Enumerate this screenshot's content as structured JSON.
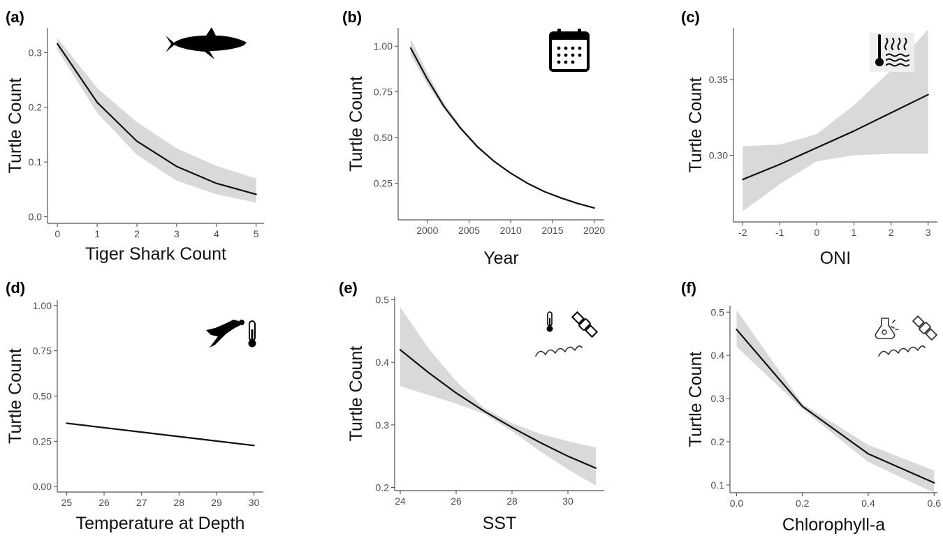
{
  "chart_data": [
    {
      "panel": "(a)",
      "type": "line",
      "xlabel": "Tiger Shark Count",
      "ylabel": "Turtle Count",
      "x_ticks": [
        "0",
        "1",
        "2",
        "3",
        "4",
        "5"
      ],
      "y_ticks": [
        "0.0",
        "0.1",
        "0.2",
        "0.3"
      ],
      "xlim": [
        -0.25,
        5.2
      ],
      "ylim": [
        -0.012,
        0.345
      ],
      "x_tick_values": [
        0,
        1,
        2,
        3,
        4,
        5
      ],
      "y_tick_values": [
        0,
        0.1,
        0.2,
        0.3
      ],
      "x": [
        0,
        1,
        2,
        3,
        4,
        5
      ],
      "y": [
        0.316,
        0.209,
        0.138,
        0.092,
        0.061,
        0.041
      ],
      "ci_lower": [
        0.305,
        0.19,
        0.113,
        0.066,
        0.041,
        0.026
      ],
      "ci_upper": [
        0.327,
        0.235,
        0.173,
        0.125,
        0.093,
        0.07
      ],
      "icon": "shark-icon",
      "grid": false
    },
    {
      "panel": "(b)",
      "type": "line",
      "xlabel": "Year",
      "ylabel": "Turtle Count",
      "x_ticks": [
        "2000",
        "2005",
        "2010",
        "2015",
        "2020"
      ],
      "y_ticks": [
        "0.25",
        "0.50",
        "0.75",
        "1.00"
      ],
      "xlim": [
        1996.5,
        2021.2
      ],
      "ylim": [
        0.05,
        1.1
      ],
      "x_tick_values": [
        2000,
        2005,
        2010,
        2015,
        2020
      ],
      "y_tick_values": [
        0.25,
        0.5,
        0.75,
        1.0
      ],
      "x": [
        1998,
        2000,
        2002,
        2004,
        2006,
        2008,
        2010,
        2012,
        2014,
        2016,
        2018,
        2020
      ],
      "y": [
        0.99,
        0.82,
        0.67,
        0.55,
        0.45,
        0.37,
        0.305,
        0.25,
        0.205,
        0.17,
        0.14,
        0.115
      ],
      "ci_lower": [
        0.95,
        0.79,
        0.655,
        0.54,
        0.443,
        0.366,
        0.302,
        0.248,
        0.203,
        0.168,
        0.138,
        0.112
      ],
      "ci_upper": [
        1.04,
        0.855,
        0.69,
        0.562,
        0.458,
        0.375,
        0.31,
        0.254,
        0.208,
        0.172,
        0.143,
        0.119
      ],
      "icon": "calendar-icon",
      "grid": false
    },
    {
      "panel": "(c)",
      "type": "line",
      "xlabel": "ONI",
      "ylabel": "Turtle Count",
      "x_ticks": [
        "-2",
        "-1",
        "0",
        "1",
        "2",
        "3"
      ],
      "y_ticks": [
        "0.30",
        "0.35"
      ],
      "xlim": [
        -2.25,
        3.25
      ],
      "ylim": [
        0.256,
        0.384
      ],
      "x_tick_values": [
        -2,
        -1,
        0,
        1,
        2,
        3
      ],
      "y_tick_values": [
        0.3,
        0.35
      ],
      "x": [
        -2,
        -1,
        0,
        1,
        2,
        3
      ],
      "y": [
        0.284,
        0.294,
        0.305,
        0.316,
        0.328,
        0.34
      ],
      "ci_lower": [
        0.263,
        0.281,
        0.296,
        0.3,
        0.301,
        0.301
      ],
      "ci_upper": [
        0.306,
        0.307,
        0.314,
        0.333,
        0.356,
        0.383
      ],
      "icon": "ocean-thermometer-icon",
      "grid": false
    },
    {
      "panel": "(d)",
      "type": "line",
      "xlabel": "Temperature at Depth",
      "ylabel": "Turtle Count",
      "x_ticks": [
        "25",
        "26",
        "27",
        "28",
        "29",
        "30"
      ],
      "y_ticks": [
        "0.00",
        "0.25",
        "0.50",
        "0.75",
        "1.00"
      ],
      "xlim": [
        24.75,
        30.25
      ],
      "ylim": [
        -0.03,
        1.03
      ],
      "x_tick_values": [
        25,
        26,
        27,
        28,
        29,
        30
      ],
      "y_tick_values": [
        0,
        0.25,
        0.5,
        0.75,
        1.0
      ],
      "x": [
        25,
        30
      ],
      "y": [
        0.35,
        0.227
      ],
      "ci_lower": [
        0.345,
        0.222
      ],
      "ci_upper": [
        0.355,
        0.232
      ],
      "icon": "diver-thermometer-icon",
      "grid": false
    },
    {
      "panel": "(e)",
      "type": "line",
      "xlabel": "SST",
      "ylabel": "Turtle Count",
      "x_ticks": [
        "24",
        "26",
        "28",
        "30"
      ],
      "y_ticks": [
        "0.2",
        "0.3",
        "0.4",
        "0.5"
      ],
      "xlim": [
        23.8,
        31.3
      ],
      "ylim": [
        0.195,
        0.505
      ],
      "x_tick_values": [
        24,
        26,
        28,
        30
      ],
      "y_tick_values": [
        0.2,
        0.3,
        0.4,
        0.5
      ],
      "x": [
        24,
        25,
        26,
        27,
        28,
        29,
        30,
        31
      ],
      "y": [
        0.42,
        0.384,
        0.351,
        0.322,
        0.296,
        0.272,
        0.25,
        0.231
      ],
      "ci_lower": [
        0.362,
        0.348,
        0.334,
        0.318,
        0.29,
        0.258,
        0.229,
        0.203
      ],
      "ci_upper": [
        0.488,
        0.423,
        0.37,
        0.327,
        0.303,
        0.286,
        0.274,
        0.264
      ],
      "icon": "thermometer-satellite-waves-icon",
      "grid": false
    },
    {
      "panel": "(f)",
      "type": "line",
      "xlabel": "Chlorophyll-a",
      "ylabel": "Turtle Count",
      "x_ticks": [
        "0.0",
        "0.2",
        "0.4",
        "0.6"
      ],
      "y_ticks": [
        "0.1",
        "0.2",
        "0.3",
        "0.4",
        "0.5"
      ],
      "xlim": [
        -0.02,
        0.61
      ],
      "ylim": [
        0.082,
        0.515
      ],
      "x_tick_values": [
        0,
        0.2,
        0.4,
        0.6
      ],
      "y_tick_values": [
        0.1,
        0.2,
        0.3,
        0.4,
        0.5
      ],
      "x": [
        0,
        0.2,
        0.4,
        0.6
      ],
      "y": [
        0.46,
        0.282,
        0.172,
        0.105
      ],
      "ci_lower": [
        0.42,
        0.276,
        0.153,
        0.082
      ],
      "ci_upper": [
        0.505,
        0.288,
        0.193,
        0.133
      ],
      "icon": "flask-satellite-waves-icon",
      "grid": false
    }
  ]
}
